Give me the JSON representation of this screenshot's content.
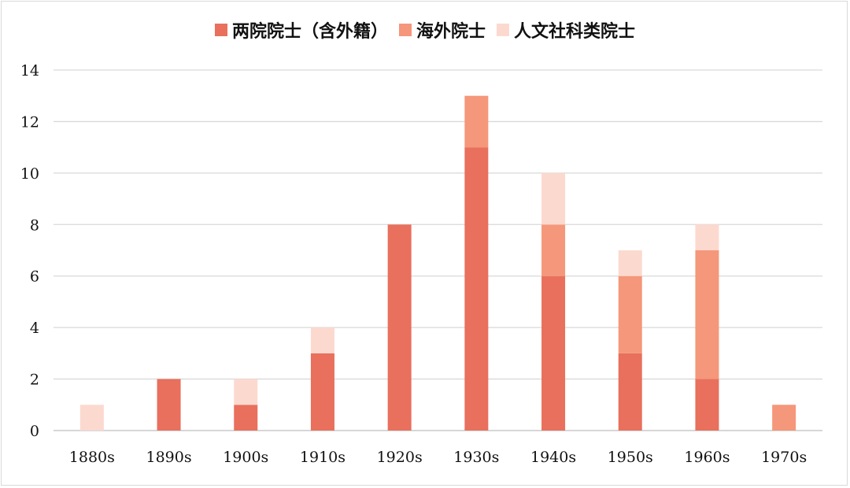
{
  "chart_data": {
    "type": "bar",
    "stacked": true,
    "categories": [
      "1880s",
      "1890s",
      "1900s",
      "1910s",
      "1920s",
      "1930s",
      "1940s",
      "1950s",
      "1960s",
      "1970s"
    ],
    "series": [
      {
        "name": "两院院士（含外籍）",
        "color": "#E8705C",
        "values": [
          0,
          2,
          1,
          3,
          8,
          11,
          6,
          3,
          2,
          0
        ]
      },
      {
        "name": "海外院士",
        "color": "#F5977A",
        "values": [
          0,
          0,
          0,
          0,
          0,
          2,
          2,
          3,
          5,
          1
        ]
      },
      {
        "name": "人文社科类院士",
        "color": "#FCD9CF",
        "values": [
          1,
          0,
          1,
          1,
          0,
          0,
          2,
          1,
          1,
          0
        ]
      }
    ],
    "title": "",
    "xlabel": "",
    "ylabel": "",
    "ylim": [
      0,
      14
    ],
    "yticks": [
      "0",
      "2",
      "4",
      "6",
      "8",
      "10",
      "12",
      "14"
    ],
    "grid": true,
    "legend": "top"
  }
}
